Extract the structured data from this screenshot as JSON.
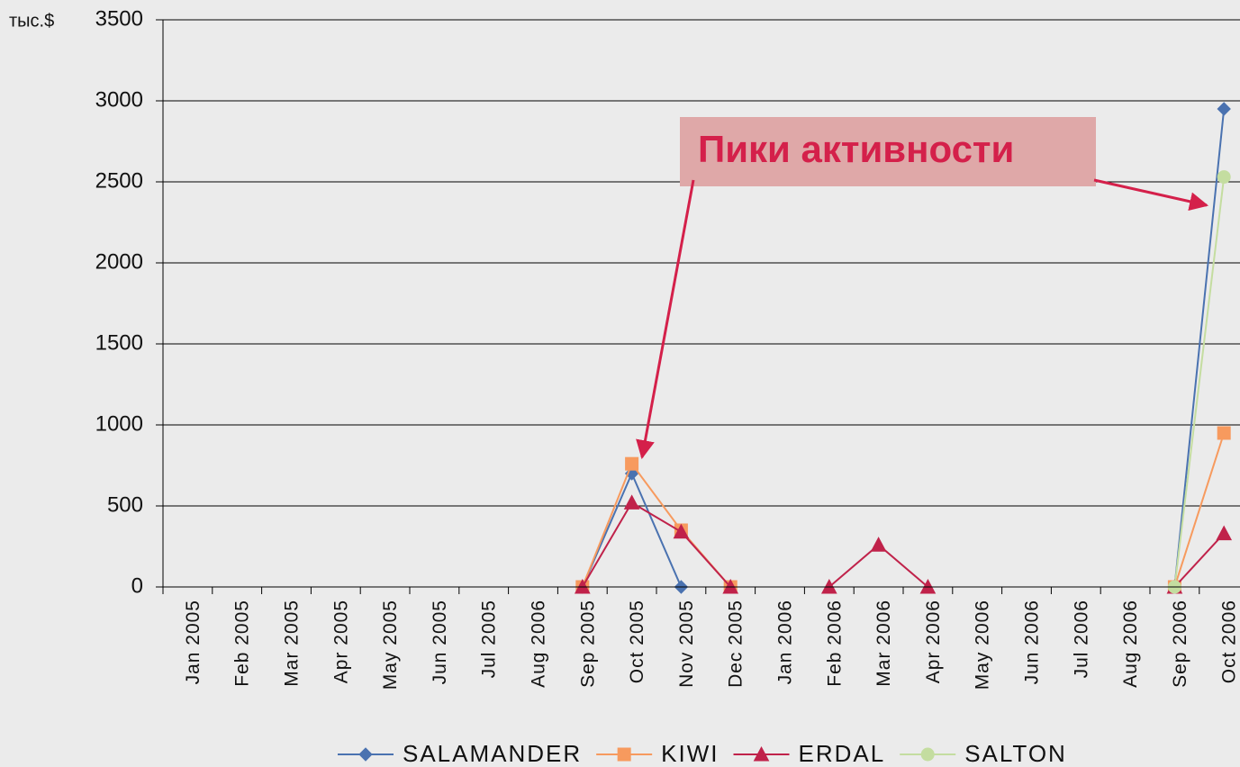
{
  "chart_data": {
    "type": "line",
    "y_axis_label": "тыс.$",
    "annotation": "Пики активности",
    "categories": [
      "Jan 2005",
      "Feb 2005",
      "Mar 2005",
      "Apr 2005",
      "May 2005",
      "Jun 2005",
      "Jul 2005",
      "Aug 2006",
      "Sep 2005",
      "Oct 2005",
      "Nov 2005",
      "Dec 2005",
      "Jan 2006",
      "Feb 2006",
      "Mar 2006",
      "Apr 2006",
      "May 2006",
      "Jun 2006",
      "Jul 2006",
      "Aug 2006",
      "Sep 2006",
      "Oct 2006"
    ],
    "series": [
      {
        "name": "SALAMANDER",
        "color": "#4a72b0",
        "marker": "diamond",
        "values": [
          null,
          null,
          null,
          null,
          null,
          null,
          null,
          null,
          0,
          700,
          0,
          null,
          null,
          null,
          null,
          null,
          null,
          null,
          null,
          null,
          0,
          2950
        ]
      },
      {
        "name": "KIWI",
        "color": "#f79a5e",
        "marker": "square",
        "values": [
          null,
          null,
          null,
          null,
          null,
          null,
          null,
          null,
          0,
          760,
          350,
          0,
          null,
          null,
          null,
          null,
          null,
          null,
          null,
          null,
          0,
          950
        ]
      },
      {
        "name": "ERDAL",
        "color": "#c0224a",
        "marker": "triangle",
        "values": [
          null,
          null,
          null,
          null,
          null,
          null,
          null,
          null,
          0,
          520,
          340,
          0,
          null,
          0,
          260,
          0,
          null,
          null,
          null,
          null,
          0,
          330
        ]
      },
      {
        "name": "SALTON",
        "color": "#c4dda0",
        "marker": "circle",
        "values": [
          null,
          null,
          null,
          null,
          null,
          null,
          null,
          null,
          null,
          null,
          null,
          null,
          null,
          null,
          null,
          null,
          null,
          null,
          null,
          null,
          0,
          2530
        ]
      }
    ],
    "ylim": [
      0,
      3500
    ],
    "yticks": [
      0,
      500,
      1000,
      1500,
      2000,
      2500,
      3000,
      3500
    ],
    "grid": true,
    "legend": "bottom"
  }
}
